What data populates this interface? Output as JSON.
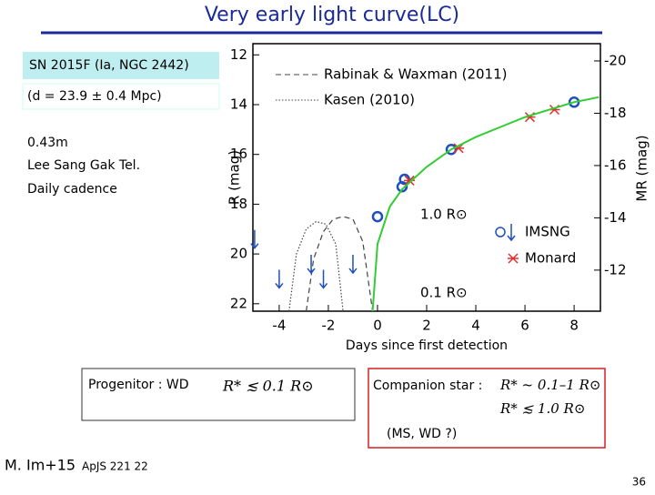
{
  "slide": {
    "title": "Very early light curve(LC)",
    "target": "SN 2015F (Ia, NGC 2442)",
    "distance": "(d = 23.9 ± 0.4 Mpc)",
    "telescope": [
      "0.43m",
      "Lee Sang Gak Tel.",
      "Daily cadence"
    ],
    "progenitor": {
      "label": "Progenitor : WD",
      "formula": "R* ≲ 0.1 R⊙"
    },
    "companion": {
      "label": "Companion star :",
      "formulas": [
        "R* ~ 0.1–1 R⊙",
        "R* ≲ 1.0 R⊙"
      ],
      "note": "(MS, WD ?)"
    },
    "reference": {
      "authors": "M. Im+15",
      "journal": "ApJS 221 22"
    },
    "page_number": "36"
  },
  "chart_data": {
    "type": "scatter",
    "xlabel": "Days since first detection",
    "ylabel": "R (mag)",
    "y2label": "MR (mag)",
    "xlim": [
      -5.07,
      9.07
    ],
    "xticks": [
      -4,
      -2,
      0,
      2,
      4,
      6,
      8
    ],
    "ylim": [
      22.3,
      11.55
    ],
    "yticks": [
      12,
      14,
      16,
      18,
      20,
      22
    ],
    "y2lim": [
      -10.43,
      -20.66
    ],
    "y2ticks": [
      -20,
      -18,
      -16,
      -14,
      -12
    ],
    "annotations": [
      "1.0 R⊙",
      "0.1 R⊙"
    ],
    "series": [
      {
        "name": "Rabinak & Waxman (2011)",
        "marker": "dashed",
        "color": "#444444",
        "x": [
          -2.9,
          -2.6,
          -2.2,
          -1.8,
          -1.4,
          -1.0,
          -0.6,
          -0.2
        ],
        "values": [
          22.3,
          20.2,
          19.1,
          18.6,
          18.5,
          18.6,
          19.5,
          22.3
        ]
      },
      {
        "name": "Kasen (2010)",
        "marker": "dotted",
        "color": "#444444",
        "x": [
          -3.6,
          -3.3,
          -2.9,
          -2.5,
          -2.1,
          -1.7,
          -1.4
        ],
        "values": [
          22.3,
          20.0,
          19.0,
          18.7,
          18.8,
          19.6,
          22.3
        ]
      },
      {
        "name": "IMSNG",
        "marker": "circle",
        "color": "#1f4fbf",
        "x": [
          0,
          1.0,
          1.1,
          3.0,
          8.0
        ],
        "values": [
          18.5,
          17.3,
          17.0,
          15.8,
          13.9
        ]
      },
      {
        "name": "Monard",
        "marker": "cross",
        "color": "#e03030",
        "x": [
          1.3,
          3.3,
          6.2,
          7.2
        ],
        "values": [
          17.05,
          15.75,
          14.5,
          14.2
        ]
      },
      {
        "marker": "arrow",
        "color": "#1f4fbf",
        "x": [
          -5.0,
          -4.0,
          -2.7,
          -2.2,
          -1.0
        ],
        "values": [
          19.4,
          21.0,
          20.4,
          21.0,
          20.4
        ]
      },
      {
        "marker": "line",
        "color": "#33cc33",
        "x": [
          -0.2,
          0,
          0.5,
          1,
          2,
          3,
          4,
          5,
          6,
          7,
          8,
          9
        ],
        "values": [
          22.3,
          19.6,
          18.1,
          17.4,
          16.5,
          15.8,
          15.3,
          14.9,
          14.5,
          14.2,
          13.9,
          13.7
        ]
      }
    ]
  }
}
